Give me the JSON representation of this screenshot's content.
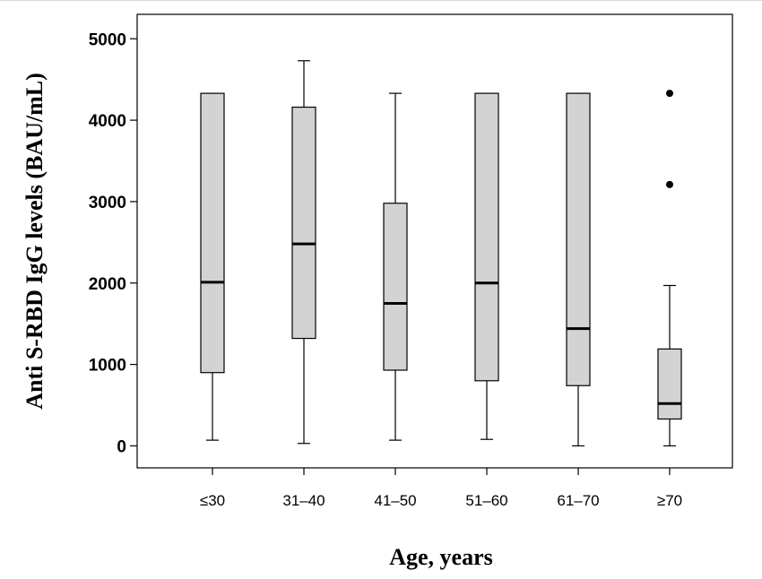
{
  "chart_data": {
    "type": "box",
    "xlabel": "Age, years",
    "ylabel": "Anti S-RBD IgG levels (BAU/mL)",
    "ylim": [
      -270,
      5300
    ],
    "yticks": [
      0,
      1000,
      2000,
      3000,
      4000,
      5000
    ],
    "grid": false,
    "categories": [
      "≤30",
      "31–40",
      "41–50",
      "51–60",
      "61–70",
      "≥70"
    ],
    "boxes": [
      {
        "category": "≤30",
        "min": 70,
        "q1": 900,
        "median": 2010,
        "q3": 4330,
        "max": 4330,
        "outliers": []
      },
      {
        "category": "31–40",
        "min": 30,
        "q1": 1320,
        "median": 2480,
        "q3": 4160,
        "max": 4730,
        "outliers": []
      },
      {
        "category": "41–50",
        "min": 70,
        "q1": 930,
        "median": 1750,
        "q3": 2980,
        "max": 4330,
        "outliers": []
      },
      {
        "category": "51–60",
        "min": 80,
        "q1": 800,
        "median": 2000,
        "q3": 4330,
        "max": 4330,
        "outliers": []
      },
      {
        "category": "61–70",
        "min": 0,
        "q1": 740,
        "median": 1440,
        "q3": 4330,
        "max": 4330,
        "outliers": []
      },
      {
        "category": "≥70",
        "min": 0,
        "q1": 330,
        "median": 520,
        "q3": 1190,
        "max": 1970,
        "outliers": [
          4330,
          3210
        ]
      }
    ],
    "colors": {
      "box_fill": "#d3d3d3",
      "stroke": "#000000"
    }
  }
}
